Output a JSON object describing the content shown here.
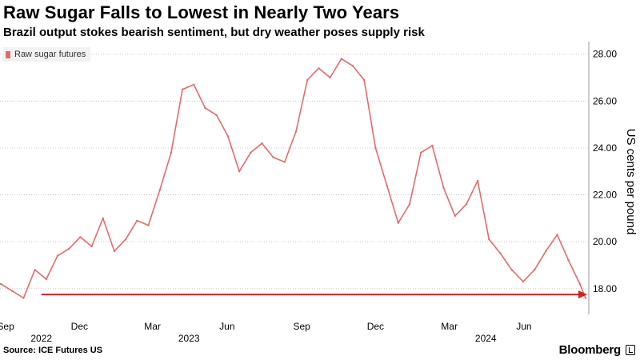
{
  "header": {
    "title": "Raw Sugar Falls to Lowest in Nearly Two Years",
    "subtitle": "Brazil output stokes bearish sentiment, but dry weather poses supply risk"
  },
  "footer": {
    "source": "Source: ICE Futures US",
    "brand": "Bloomberg"
  },
  "colors": {
    "series": "#e36b6b",
    "arrow": "#d42020",
    "grid": "#c8c8c8"
  },
  "chart_data": {
    "type": "line",
    "title": "Raw Sugar Falls to Lowest in Nearly Two Years",
    "subtitle": "Brazil output stokes bearish sentiment, but dry weather poses supply risk",
    "xlabel": "",
    "ylabel": "US cents per pound",
    "legend": "top-left",
    "grid": "horizontal dotted",
    "y_axis_side": "right",
    "ylim": [
      16.9,
      28.4
    ],
    "xlim": [
      "2022-08-25",
      "2024-08-20"
    ],
    "y_ticks": [
      "18.00",
      "20.00",
      "22.00",
      "24.00",
      "26.00",
      "28.00"
    ],
    "x_tick_labels": [
      {
        "label": "Sep",
        "date": "2022-09-01"
      },
      {
        "label": "Dec",
        "date": "2022-12-01"
      },
      {
        "label": "Mar",
        "date": "2023-03-01"
      },
      {
        "label": "Jun",
        "date": "2023-06-01"
      },
      {
        "label": "Sep",
        "date": "2023-09-01"
      },
      {
        "label": "Dec",
        "date": "2023-12-01"
      },
      {
        "label": "Mar",
        "date": "2024-03-01"
      },
      {
        "label": "Jun",
        "date": "2024-06-01"
      }
    ],
    "year_labels": [
      {
        "label": "2022",
        "date": "2022-10-15"
      },
      {
        "label": "2023",
        "date": "2023-04-15"
      },
      {
        "label": "2024",
        "date": "2024-04-15"
      }
    ],
    "series": [
      {
        "name": "Raw sugar futures",
        "x": [
          "2022-08-26",
          "2022-09-09",
          "2022-09-23",
          "2022-10-07",
          "2022-10-21",
          "2022-11-04",
          "2022-11-18",
          "2022-12-02",
          "2022-12-16",
          "2022-12-30",
          "2023-01-13",
          "2023-01-27",
          "2023-02-10",
          "2023-02-24",
          "2023-03-10",
          "2023-03-24",
          "2023-04-07",
          "2023-04-21",
          "2023-05-05",
          "2023-05-19",
          "2023-06-02",
          "2023-06-16",
          "2023-06-30",
          "2023-07-14",
          "2023-07-28",
          "2023-08-11",
          "2023-08-25",
          "2023-09-08",
          "2023-09-22",
          "2023-10-06",
          "2023-10-20",
          "2023-11-03",
          "2023-11-17",
          "2023-12-01",
          "2023-12-15",
          "2023-12-29",
          "2024-01-12",
          "2024-01-26",
          "2024-02-09",
          "2024-02-23",
          "2024-03-08",
          "2024-03-22",
          "2024-04-05",
          "2024-04-19",
          "2024-05-03",
          "2024-05-17",
          "2024-05-31",
          "2024-06-14",
          "2024-06-28",
          "2024-07-12",
          "2024-07-26",
          "2024-08-09",
          "2024-08-16"
        ],
        "values": [
          18.2,
          17.9,
          17.6,
          18.8,
          18.4,
          19.4,
          19.7,
          20.2,
          19.8,
          21.0,
          19.6,
          20.1,
          20.9,
          20.7,
          22.2,
          23.8,
          26.5,
          26.7,
          25.7,
          25.4,
          24.5,
          23.0,
          23.8,
          24.2,
          23.6,
          23.4,
          24.7,
          26.9,
          27.4,
          27.0,
          27.8,
          27.5,
          26.9,
          24.0,
          22.4,
          20.8,
          21.6,
          23.8,
          24.1,
          22.3,
          21.1,
          21.6,
          22.6,
          20.1,
          19.5,
          18.8,
          18.3,
          18.8,
          19.6,
          20.3,
          19.2,
          18.2,
          17.6
        ]
      }
    ]
  }
}
